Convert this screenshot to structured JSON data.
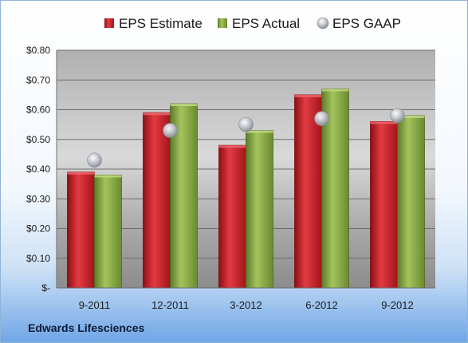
{
  "chart_data": {
    "type": "bar",
    "categories": [
      "9-2011",
      "12-2011",
      "3-2012",
      "6-2012",
      "9-2012"
    ],
    "series": [
      {
        "name": "EPS Estimate",
        "kind": "bar",
        "color": "#c8202a",
        "values": [
          0.39,
          0.59,
          0.48,
          0.65,
          0.56
        ]
      },
      {
        "name": "EPS Actual",
        "kind": "bar",
        "color": "#86a844",
        "values": [
          0.38,
          0.62,
          0.53,
          0.67,
          0.58
        ]
      },
      {
        "name": "EPS GAAP",
        "kind": "marker",
        "color": "#b9bec7",
        "values": [
          0.43,
          0.53,
          0.55,
          0.57,
          0.58
        ]
      }
    ],
    "ylim": [
      0,
      0.8
    ],
    "yticks": [
      0,
      0.1,
      0.2,
      0.3,
      0.4,
      0.5,
      0.6,
      0.7,
      0.8
    ],
    "ytick_labels": [
      "$-",
      "$0.10",
      "$0.20",
      "$0.30",
      "$0.40",
      "$0.50",
      "$0.60",
      "$0.70",
      "$0.80"
    ],
    "grid": true,
    "legend": "top",
    "title": "",
    "xlabel": "",
    "ylabel": ""
  },
  "company": "Edwards Lifesciences"
}
